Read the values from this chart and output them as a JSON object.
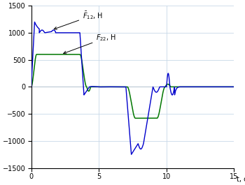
{
  "title": "",
  "xlabel": "t, c",
  "xlim": [
    0,
    15
  ],
  "ylim": [
    -1500,
    1500
  ],
  "yticks": [
    -1500,
    -1000,
    -500,
    0,
    500,
    1000,
    1500
  ],
  "xticks": [
    0,
    5,
    10,
    15
  ],
  "grid_color": "#c8d8e8",
  "line1_color": "#0000cc",
  "line2_color": "#007700",
  "bg_color": "#ffffff"
}
